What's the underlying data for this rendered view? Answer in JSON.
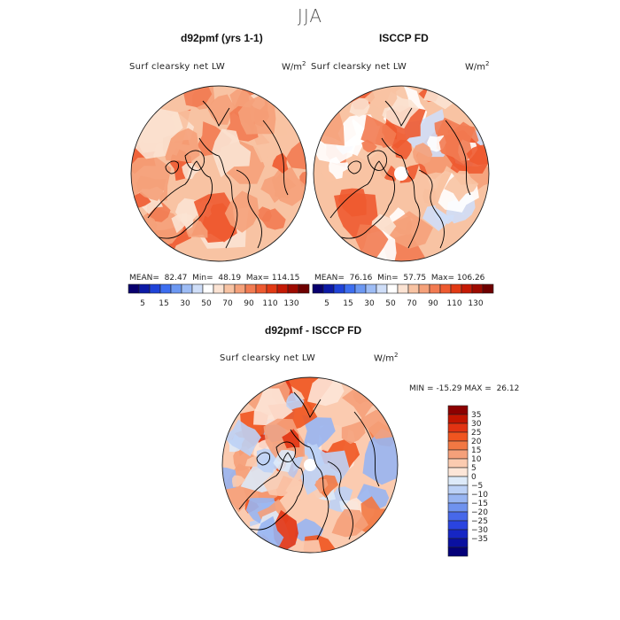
{
  "figure": {
    "season": "JJA"
  },
  "panels": {
    "model": {
      "title": "d92pmf (yrs 1-1)",
      "variable": "Surf clearsky net LW",
      "units_base": "W/m",
      "units_exp": "2",
      "stats": {
        "mean_label": "MEAN=",
        "mean": "82.47",
        "min_label": "Min=",
        "min": "48.19",
        "max_label": "Max=",
        "max": "114.15"
      }
    },
    "obs": {
      "title": "ISCCP FD",
      "variable": "Surf clearsky net LW",
      "units_base": "W/m",
      "units_exp": "2",
      "stats": {
        "mean_label": "MEAN=",
        "mean": "76.16",
        "min_label": "Min=",
        "min": "57.75",
        "max_label": "Max=",
        "max": "106.26"
      }
    },
    "diff": {
      "title": "d92pmf - ISCCP FD",
      "variable": "Surf clearsky net LW",
      "units_base": "W/m",
      "units_exp": "2",
      "stats": {
        "min_label": "MIN =",
        "min": "-15.29",
        "max_label": "MAX =",
        "max": "26.12"
      }
    }
  },
  "colorbar_abs": {
    "colors": [
      "#08006e",
      "#0c1aa6",
      "#1f43d8",
      "#3d6ef0",
      "#6c98f2",
      "#9dbcf5",
      "#cfdef8",
      "#ffffff",
      "#fbe3d3",
      "#f8c3a3",
      "#f5a17a",
      "#f27b52",
      "#ee5a30",
      "#e23a14",
      "#c51a05",
      "#9e0a00",
      "#6e0000"
    ],
    "tick_labels": [
      "5",
      "15",
      "30",
      "50",
      "70",
      "90",
      "110",
      "130"
    ]
  },
  "colorbar_diff": {
    "colors": [
      "#8c0000",
      "#c21500",
      "#e23312",
      "#f05520",
      "#f27843",
      "#f5a07a",
      "#fbcbb0",
      "#fde6d8",
      "#ddeaf9",
      "#bcd1f6",
      "#98b5f2",
      "#6f92ee",
      "#4768ea",
      "#2a44e0",
      "#1626c4",
      "#0a10a0",
      "#040079"
    ],
    "tick_labels": [
      "35",
      "30",
      "25",
      "20",
      "15",
      "10",
      "5",
      "0",
      "−5",
      "−10",
      "−15",
      "−20",
      "−25",
      "−30",
      "−35"
    ]
  },
  "maps": {
    "projection": "north-polar-stereographic",
    "model_palette": [
      "#fbe3d3",
      "#f8c3a3",
      "#f5a17a",
      "#f27b52",
      "#ee5a30"
    ],
    "obs_palette": [
      "#ffffff",
      "#fbe3d3",
      "#f8c3a3",
      "#f5a17a",
      "#f27b52",
      "#ee5a30",
      "#cfdef8"
    ],
    "diff_palette": [
      "#fde6d8",
      "#fbcbb0",
      "#f5a07a",
      "#f27843",
      "#f05520",
      "#e23312",
      "#ddeaf9",
      "#bcd1f6",
      "#98b5f2"
    ]
  }
}
